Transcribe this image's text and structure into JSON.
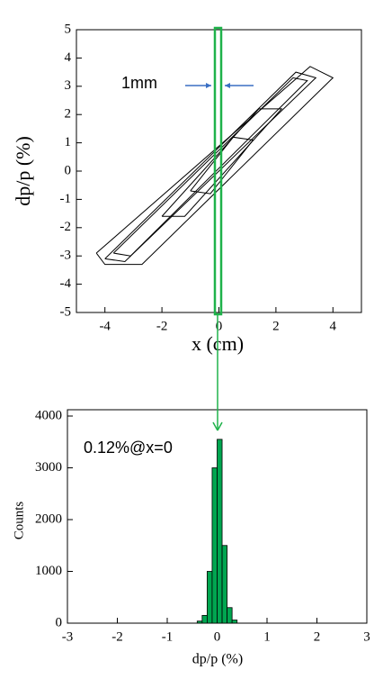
{
  "chart_data": [
    {
      "type": "contour",
      "ylabel": "dp/p (%)",
      "xlabel": "x (cm)",
      "annotation": "1mm",
      "xlim": [
        -5,
        5
      ],
      "ylim": [
        -5,
        5
      ],
      "xticks": [
        -4,
        -2,
        0,
        2,
        4
      ],
      "yticks": [
        -5,
        -4,
        -3,
        -2,
        -1,
        0,
        1,
        2,
        3,
        4,
        5
      ],
      "series": [
        {
          "color": "#000000",
          "x": [
            -4.3,
            -4.0,
            -2.7,
            4.0,
            3.2,
            -4.3
          ],
          "values": [
            -2.9,
            -3.3,
            -3.3,
            3.3,
            3.7,
            -2.9
          ]
        },
        {
          "color": "#000000",
          "x": [
            -4.0,
            -3.3,
            3.4,
            2.7,
            -4.0
          ],
          "values": [
            -3.1,
            -3.2,
            3.3,
            3.5,
            -3.1
          ]
        },
        {
          "color": "#000000",
          "x": [
            -3.7,
            -3.1,
            3.1,
            2.6,
            -3.7
          ],
          "values": [
            -2.9,
            -3.0,
            3.2,
            3.3,
            -2.9
          ]
        },
        {
          "color": "#000000",
          "x": [
            -2.0,
            -1.2,
            2.2,
            1.4,
            -2.0
          ],
          "values": [
            -1.6,
            -1.6,
            2.2,
            2.2,
            -1.6
          ]
        },
        {
          "color": "#000000",
          "x": [
            -1.0,
            -0.3,
            1.2,
            0.5,
            -1.0
          ],
          "values": [
            -0.7,
            -0.8,
            1.1,
            1.2,
            -0.7
          ]
        }
      ]
    },
    {
      "type": "histogram",
      "ylabel": "Counts",
      "xlabel": "dp/p (%)",
      "annotation": "0.12%@x=0",
      "xlim": [
        -3,
        3
      ],
      "ylim": [
        0,
        4000
      ],
      "xticks": [
        -3,
        -2,
        -1,
        0,
        1,
        2,
        3
      ],
      "yticks": [
        0,
        1000,
        2000,
        3000,
        4000
      ],
      "bins": [
        -0.4,
        -0.3,
        -0.2,
        -0.1,
        0,
        0.1,
        0.2,
        0.3,
        0.4
      ],
      "values": [
        40,
        150,
        1000,
        3000,
        3550,
        1500,
        300,
        60
      ],
      "color": "#00a650"
    }
  ]
}
